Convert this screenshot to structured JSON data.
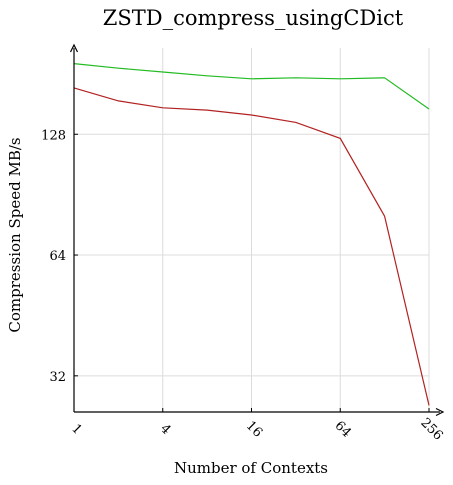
{
  "chart_data": {
    "type": "line",
    "title": "ZSTD_compress_usingCDict",
    "xlabel": "Number of Contexts",
    "ylabel": "Compression Speed MB/s",
    "x_scale": "log2",
    "y_scale": "log2",
    "xlim": [
      1,
      256
    ],
    "ylim": [
      26,
      210
    ],
    "x_ticks": [
      1,
      4,
      16,
      64,
      256
    ],
    "x_tick_labels": [
      "1",
      "4",
      "16",
      "64",
      "256"
    ],
    "y_ticks": [
      32,
      64,
      128
    ],
    "y_tick_labels": [
      "32",
      "64",
      "128"
    ],
    "grid": true,
    "legend": "none",
    "x": [
      1,
      2,
      4,
      8,
      16,
      32,
      64,
      128,
      256
    ],
    "series": [
      {
        "color": "#22bb22",
        "values": [
          192,
          187,
          183,
          179,
          176,
          177,
          176,
          177,
          148
        ]
      },
      {
        "color": "#b22222",
        "values": [
          167,
          155,
          149,
          147,
          143,
          137,
          125,
          80,
          27
        ]
      }
    ]
  }
}
